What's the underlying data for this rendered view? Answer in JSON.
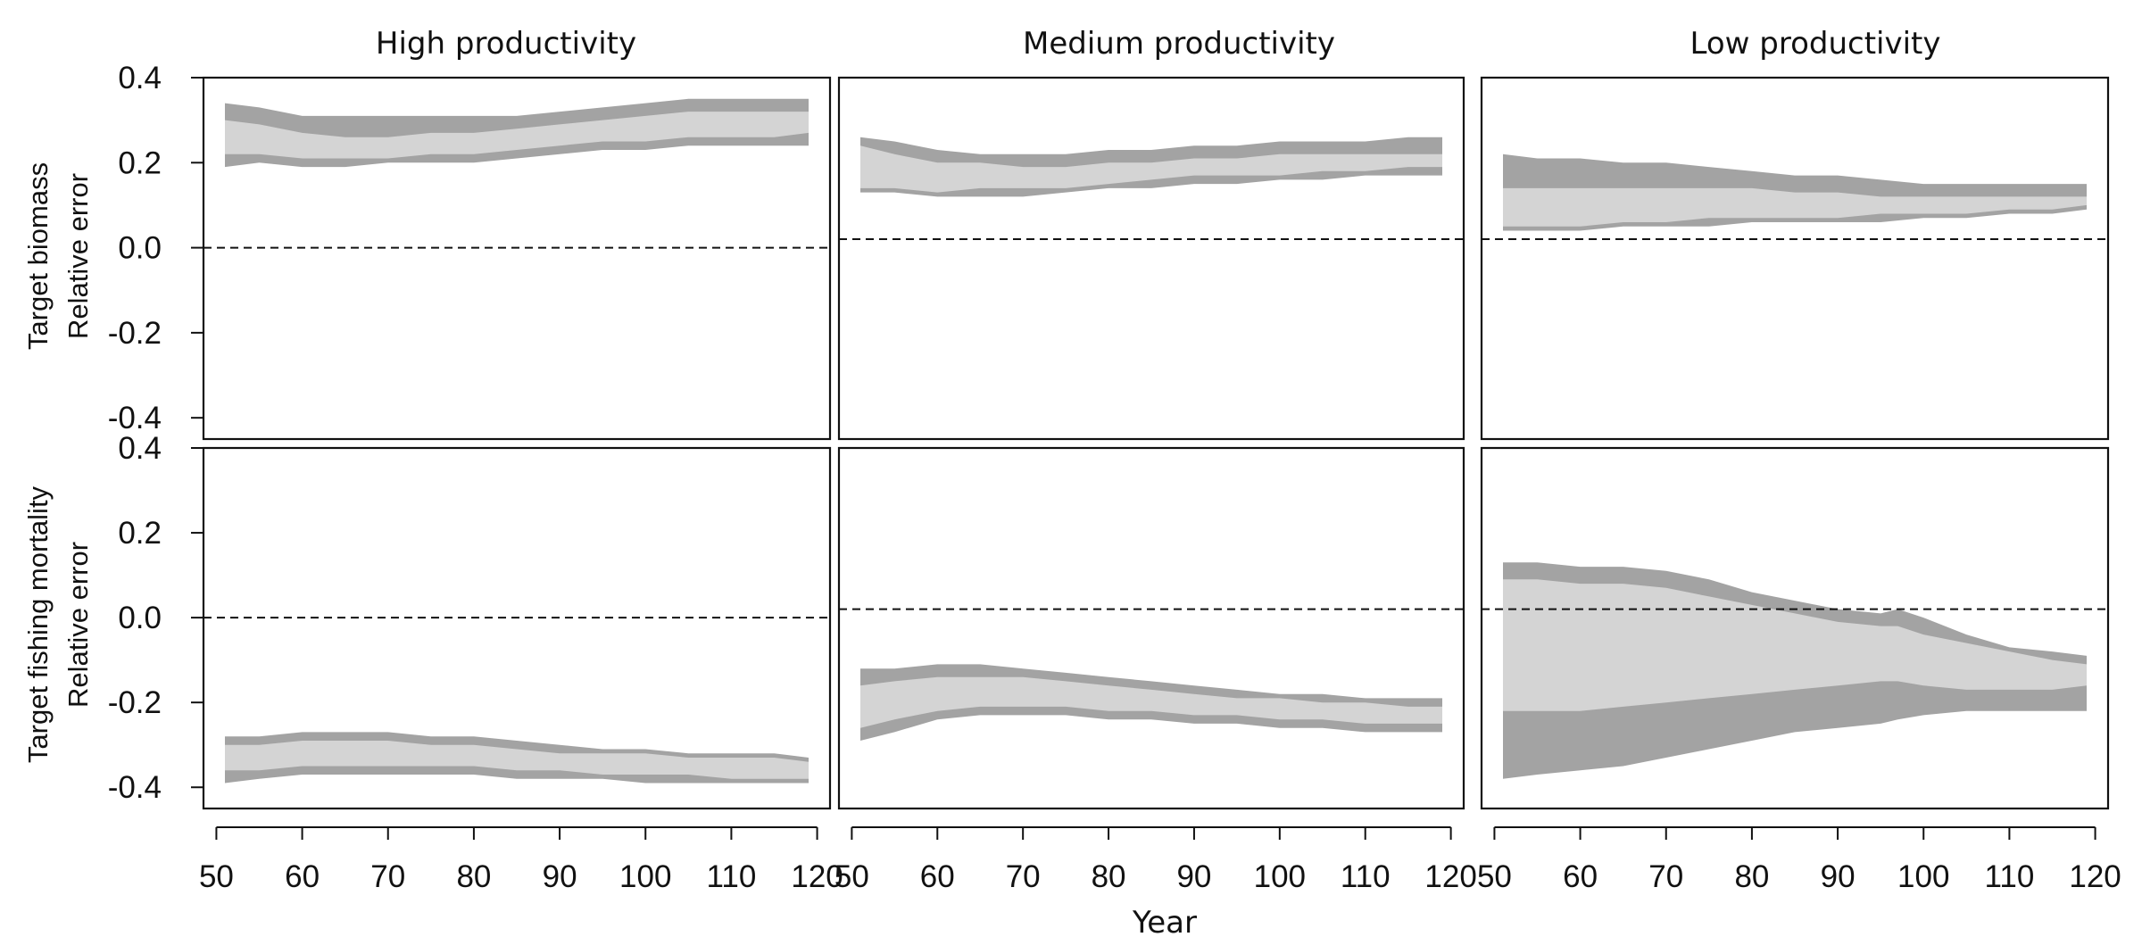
{
  "chart_data": {
    "type": "area",
    "xlabel": "Year",
    "x_ticks": [
      50,
      60,
      70,
      80,
      90,
      100,
      110,
      120
    ],
    "y_ticks": [
      "0.4",
      "0.2",
      "0.0",
      "-0.2",
      "-0.4"
    ],
    "ylim": [
      -0.45,
      0.4
    ],
    "columns": [
      "High productivity",
      "Medium productivity",
      "Low productivity"
    ],
    "rows": [
      {
        "label_line1": "Target biomass",
        "label_line2": "Relative error"
      },
      {
        "label_line1": "Target fishing mortality",
        "label_line2": "Relative error"
      }
    ],
    "colors": {
      "outer_band": "#a3a3a3",
      "inner_band": "#d4d4d4",
      "reference_line": "#111111"
    },
    "reference_line": "dashed",
    "panels": [
      {
        "row": 0,
        "col": 0,
        "ref": 0.0,
        "x": [
          51,
          55,
          60,
          65,
          70,
          75,
          80,
          85,
          90,
          95,
          100,
          105,
          110,
          115,
          119
        ],
        "outer_upper": [
          0.34,
          0.33,
          0.31,
          0.31,
          0.31,
          0.31,
          0.31,
          0.31,
          0.32,
          0.33,
          0.34,
          0.35,
          0.35,
          0.35,
          0.35
        ],
        "inner_upper": [
          0.3,
          0.29,
          0.27,
          0.26,
          0.26,
          0.27,
          0.27,
          0.28,
          0.29,
          0.3,
          0.31,
          0.32,
          0.32,
          0.32,
          0.32
        ],
        "inner_lower": [
          0.22,
          0.22,
          0.21,
          0.21,
          0.21,
          0.22,
          0.22,
          0.23,
          0.24,
          0.25,
          0.25,
          0.26,
          0.26,
          0.26,
          0.27
        ],
        "outer_lower": [
          0.19,
          0.2,
          0.19,
          0.19,
          0.2,
          0.2,
          0.2,
          0.21,
          0.22,
          0.23,
          0.23,
          0.24,
          0.24,
          0.24,
          0.24
        ]
      },
      {
        "row": 0,
        "col": 1,
        "ref": 0.02,
        "x": [
          51,
          55,
          60,
          65,
          70,
          75,
          80,
          85,
          90,
          95,
          100,
          105,
          110,
          115,
          119
        ],
        "outer_upper": [
          0.26,
          0.25,
          0.23,
          0.22,
          0.22,
          0.22,
          0.23,
          0.23,
          0.24,
          0.24,
          0.25,
          0.25,
          0.25,
          0.26,
          0.26
        ],
        "inner_upper": [
          0.24,
          0.22,
          0.2,
          0.2,
          0.19,
          0.19,
          0.2,
          0.2,
          0.21,
          0.21,
          0.22,
          0.22,
          0.22,
          0.22,
          0.22
        ],
        "inner_lower": [
          0.14,
          0.14,
          0.13,
          0.14,
          0.14,
          0.14,
          0.15,
          0.16,
          0.17,
          0.17,
          0.17,
          0.18,
          0.18,
          0.19,
          0.19
        ],
        "outer_lower": [
          0.13,
          0.13,
          0.12,
          0.12,
          0.12,
          0.13,
          0.14,
          0.14,
          0.15,
          0.15,
          0.16,
          0.16,
          0.17,
          0.17,
          0.17
        ]
      },
      {
        "row": 0,
        "col": 2,
        "ref": 0.02,
        "x": [
          51,
          55,
          60,
          65,
          70,
          75,
          80,
          85,
          90,
          95,
          100,
          105,
          110,
          115,
          119
        ],
        "outer_upper": [
          0.22,
          0.21,
          0.21,
          0.2,
          0.2,
          0.19,
          0.18,
          0.17,
          0.17,
          0.16,
          0.15,
          0.15,
          0.15,
          0.15,
          0.15
        ],
        "inner_upper": [
          0.14,
          0.14,
          0.14,
          0.14,
          0.14,
          0.14,
          0.14,
          0.13,
          0.13,
          0.12,
          0.12,
          0.12,
          0.12,
          0.12,
          0.12
        ],
        "inner_lower": [
          0.05,
          0.05,
          0.05,
          0.06,
          0.06,
          0.07,
          0.07,
          0.07,
          0.07,
          0.08,
          0.08,
          0.08,
          0.09,
          0.09,
          0.1
        ],
        "outer_lower": [
          0.04,
          0.04,
          0.04,
          0.05,
          0.05,
          0.05,
          0.06,
          0.06,
          0.06,
          0.06,
          0.07,
          0.07,
          0.08,
          0.08,
          0.09
        ]
      },
      {
        "row": 1,
        "col": 0,
        "ref": 0.0,
        "x": [
          51,
          55,
          60,
          65,
          70,
          75,
          80,
          85,
          90,
          95,
          100,
          105,
          110,
          115,
          119
        ],
        "outer_upper": [
          -0.28,
          -0.28,
          -0.27,
          -0.27,
          -0.27,
          -0.28,
          -0.28,
          -0.29,
          -0.3,
          -0.31,
          -0.31,
          -0.32,
          -0.32,
          -0.32,
          -0.33
        ],
        "inner_upper": [
          -0.3,
          -0.3,
          -0.29,
          -0.29,
          -0.29,
          -0.3,
          -0.3,
          -0.31,
          -0.32,
          -0.32,
          -0.32,
          -0.33,
          -0.33,
          -0.33,
          -0.34
        ],
        "inner_lower": [
          -0.36,
          -0.36,
          -0.35,
          -0.35,
          -0.35,
          -0.35,
          -0.35,
          -0.36,
          -0.36,
          -0.37,
          -0.37,
          -0.37,
          -0.38,
          -0.38,
          -0.38
        ],
        "outer_lower": [
          -0.39,
          -0.38,
          -0.37,
          -0.37,
          -0.37,
          -0.37,
          -0.37,
          -0.38,
          -0.38,
          -0.38,
          -0.39,
          -0.39,
          -0.39,
          -0.39,
          -0.39
        ]
      },
      {
        "row": 1,
        "col": 1,
        "ref": 0.02,
        "x": [
          51,
          55,
          60,
          65,
          70,
          75,
          80,
          85,
          90,
          95,
          100,
          105,
          110,
          115,
          119
        ],
        "outer_upper": [
          -0.12,
          -0.12,
          -0.11,
          -0.11,
          -0.12,
          -0.13,
          -0.14,
          -0.15,
          -0.16,
          -0.17,
          -0.18,
          -0.18,
          -0.19,
          -0.19,
          -0.19
        ],
        "inner_upper": [
          -0.16,
          -0.15,
          -0.14,
          -0.14,
          -0.14,
          -0.15,
          -0.16,
          -0.17,
          -0.18,
          -0.19,
          -0.19,
          -0.2,
          -0.2,
          -0.21,
          -0.21
        ],
        "inner_lower": [
          -0.26,
          -0.24,
          -0.22,
          -0.21,
          -0.21,
          -0.21,
          -0.22,
          -0.22,
          -0.23,
          -0.23,
          -0.24,
          -0.24,
          -0.25,
          -0.25,
          -0.25
        ],
        "outer_lower": [
          -0.29,
          -0.27,
          -0.24,
          -0.23,
          -0.23,
          -0.23,
          -0.24,
          -0.24,
          -0.25,
          -0.25,
          -0.26,
          -0.26,
          -0.27,
          -0.27,
          -0.27
        ]
      },
      {
        "row": 1,
        "col": 2,
        "ref": 0.02,
        "x": [
          51,
          55,
          60,
          65,
          70,
          75,
          80,
          85,
          90,
          95,
          97,
          100,
          105,
          110,
          115,
          119
        ],
        "outer_upper": [
          0.13,
          0.13,
          0.12,
          0.12,
          0.11,
          0.09,
          0.06,
          0.04,
          0.02,
          0.01,
          0.02,
          0.0,
          -0.04,
          -0.07,
          -0.08,
          -0.09
        ],
        "inner_upper": [
          0.09,
          0.09,
          0.08,
          0.08,
          0.07,
          0.05,
          0.03,
          0.01,
          -0.01,
          -0.02,
          -0.02,
          -0.04,
          -0.06,
          -0.08,
          -0.1,
          -0.11
        ],
        "inner_lower": [
          -0.22,
          -0.22,
          -0.22,
          -0.21,
          -0.2,
          -0.19,
          -0.18,
          -0.17,
          -0.16,
          -0.15,
          -0.15,
          -0.16,
          -0.17,
          -0.17,
          -0.17,
          -0.16
        ],
        "outer_lower": [
          -0.38,
          -0.37,
          -0.36,
          -0.35,
          -0.33,
          -0.31,
          -0.29,
          -0.27,
          -0.26,
          -0.25,
          -0.24,
          -0.23,
          -0.22,
          -0.22,
          -0.22,
          -0.22
        ]
      }
    ]
  }
}
